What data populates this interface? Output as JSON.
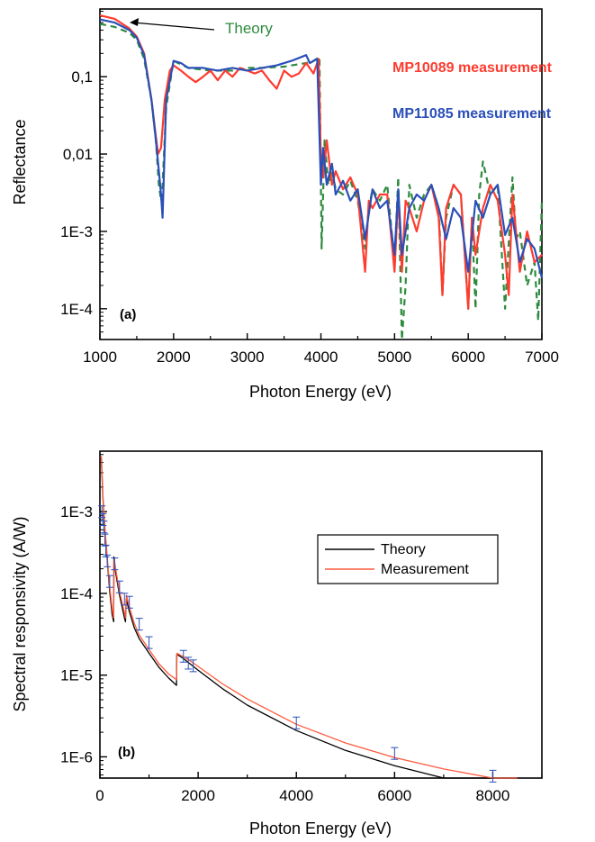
{
  "chart_data": [
    {
      "type": "line",
      "panel_label": "(a)",
      "xlabel": "Photon Energy (eV)",
      "ylabel": "Reflectance",
      "xlim": [
        1000,
        7000
      ],
      "ylim": [
        4e-05,
        0.75
      ],
      "yscale": "log",
      "x_ticks": [
        1000,
        2000,
        3000,
        4000,
        5000,
        6000,
        7000
      ],
      "x_tick_labels": [
        "1000",
        "2000",
        "3000",
        "4000",
        "5000",
        "6000",
        "7000"
      ],
      "y_ticks": [
        0.1,
        0.01,
        0.001,
        0.0001
      ],
      "y_tick_labels": [
        "0,1",
        "0,01",
        "1E-3",
        "1E-4"
      ],
      "grid": false,
      "annotation": "Theory",
      "series": [
        {
          "name": "Theory",
          "color": "#2e8b3e",
          "style": "dashed",
          "x": [
            1000,
            1200,
            1400,
            1500,
            1600,
            1700,
            1760,
            1800,
            1830,
            1850,
            1900,
            2000,
            2200,
            2500,
            2800,
            3000,
            3200,
            3500,
            3800,
            3900,
            3980,
            4010,
            4050,
            4100,
            4150,
            4200,
            4300,
            4400,
            4500,
            4600,
            4650,
            4700,
            4800,
            4900,
            5000,
            5050,
            5100,
            5150,
            5200,
            5300,
            5400,
            5500,
            5600,
            5650,
            5700,
            5800,
            5900,
            6000,
            6050,
            6100,
            6150,
            6200,
            6300,
            6400,
            6500,
            6600,
            6650,
            6700,
            6800,
            6900,
            6950,
            7000
          ],
          "y": [
            0.48,
            0.44,
            0.37,
            0.3,
            0.17,
            0.05,
            0.015,
            0.004,
            0.0025,
            0.004,
            0.04,
            0.16,
            0.13,
            0.12,
            0.12,
            0.13,
            0.13,
            0.135,
            0.15,
            0.16,
            0.18,
            0.0006,
            0.015,
            0.004,
            0.006,
            0.0035,
            0.003,
            0.0045,
            0.0025,
            0.0006,
            0.002,
            0.0035,
            0.0025,
            0.004,
            0.0004,
            0.005,
            4e-05,
            0.0002,
            0.004,
            0.0015,
            0.003,
            0.004,
            0.002,
            0.00015,
            0.0015,
            0.004,
            0.003,
            0.0001,
            0.0015,
            0.0001,
            0.003,
            0.008,
            0.003,
            0.004,
            0.0001,
            0.005,
            0.0008,
            0.001,
            0.0002,
            0.0004,
            7e-05,
            0.0025
          ]
        },
        {
          "name": "MP10089 measurement",
          "color": "#ff3b2f",
          "style": "solid",
          "x": [
            1000,
            1200,
            1400,
            1500,
            1600,
            1700,
            1750,
            1790,
            1830,
            1880,
            1950,
            2000,
            2100,
            2200,
            2300,
            2400,
            2500,
            2600,
            2700,
            2800,
            2900,
            3000,
            3100,
            3200,
            3300,
            3400,
            3500,
            3600,
            3700,
            3800,
            3900,
            3970,
            4000,
            4030,
            4080,
            4150,
            4200,
            4300,
            4400,
            4500,
            4600,
            4650,
            4700,
            4800,
            4900,
            5000,
            5050,
            5100,
            5150,
            5200,
            5300,
            5400,
            5500,
            5600,
            5650,
            5700,
            5800,
            5900,
            6000,
            6050,
            6100,
            6200,
            6300,
            6400,
            6500,
            6550,
            6600,
            6700,
            6800,
            6900,
            7000
          ],
          "y": [
            0.62,
            0.56,
            0.42,
            0.33,
            0.2,
            0.05,
            0.02,
            0.01,
            0.012,
            0.05,
            0.12,
            0.14,
            0.12,
            0.1,
            0.085,
            0.1,
            0.12,
            0.09,
            0.12,
            0.1,
            0.13,
            0.12,
            0.11,
            0.12,
            0.09,
            0.07,
            0.12,
            0.1,
            0.11,
            0.15,
            0.11,
            0.17,
            0.008,
            0.005,
            0.015,
            0.004,
            0.006,
            0.0035,
            0.005,
            0.003,
            0.0003,
            0.0025,
            0.002,
            0.003,
            0.003,
            0.0003,
            0.003,
            0.0003,
            0.0025,
            0.002,
            0.001,
            0.0025,
            0.004,
            0.0015,
            0.00015,
            0.002,
            0.004,
            0.003,
            0.0001,
            0.0015,
            0.0005,
            0.002,
            0.004,
            0.0025,
            0.0005,
            0.00015,
            0.003,
            0.0003,
            0.001,
            0.0004,
            0.0005
          ]
        },
        {
          "name": "MP11085 measurement",
          "color": "#2a4fb8",
          "style": "solid",
          "x": [
            1000,
            1200,
            1400,
            1500,
            1600,
            1700,
            1760,
            1800,
            1830,
            1850,
            1900,
            2000,
            2100,
            2200,
            2400,
            2600,
            2800,
            3000,
            3200,
            3400,
            3600,
            3800,
            3850,
            3950,
            4000,
            4030,
            4080,
            4150,
            4200,
            4300,
            4400,
            4500,
            4600,
            4700,
            4800,
            4900,
            5000,
            5050,
            5100,
            5200,
            5300,
            5400,
            5500,
            5600,
            5700,
            5800,
            5900,
            6000,
            6100,
            6200,
            6300,
            6400,
            6500,
            6600,
            6700,
            6800,
            6900,
            7000
          ],
          "y": [
            0.55,
            0.5,
            0.4,
            0.32,
            0.19,
            0.05,
            0.015,
            0.006,
            0.003,
            0.0015,
            0.05,
            0.16,
            0.15,
            0.13,
            0.13,
            0.12,
            0.13,
            0.12,
            0.13,
            0.14,
            0.16,
            0.19,
            0.15,
            0.17,
            0.004,
            0.012,
            0.004,
            0.0075,
            0.003,
            0.0045,
            0.0025,
            0.0035,
            0.0008,
            0.0035,
            0.002,
            0.0025,
            0.0005,
            0.0035,
            0.0005,
            0.002,
            0.003,
            0.0025,
            0.004,
            0.002,
            0.0008,
            0.002,
            0.0015,
            0.0003,
            0.0025,
            0.0015,
            0.003,
            0.004,
            0.0009,
            0.0015,
            0.0004,
            0.0008,
            0.0006,
            0.00025
          ]
        }
      ]
    },
    {
      "type": "line",
      "panel_label": "(b)",
      "xlabel": "Photon Energy (eV)",
      "ylabel": "Spectral responsivity (A/W)",
      "xlim": [
        0,
        9000
      ],
      "ylim": [
        5.5e-07,
        0.0055
      ],
      "yscale": "log",
      "x_ticks": [
        0,
        2000,
        4000,
        6000,
        8000
      ],
      "x_tick_labels": [
        "0",
        "2000",
        "4000",
        "6000",
        "8000"
      ],
      "y_ticks": [
        0.001,
        0.0001,
        1e-05,
        1e-06
      ],
      "y_tick_labels": [
        "1E-3",
        "1E-4",
        "1E-5",
        "1E-6"
      ],
      "grid": false,
      "legend_position": "top-right",
      "series": [
        {
          "name": "Theory",
          "color": "#000000",
          "x": [
            30,
            60,
            100,
            150,
            200,
            250,
            280,
            285,
            320,
            400,
            500,
            520,
            535,
            600,
            700,
            800,
            1000,
            1200,
            1400,
            1560,
            1565,
            1700,
            2000,
            2500,
            3000,
            4000,
            5000,
            6000,
            7000,
            8000,
            8500
          ],
          "y": [
            0.0045,
            0.0015,
            0.0006,
            0.00025,
            0.000105,
            5.5e-05,
            4.5e-05,
            0.00028,
            0.00018,
            9.5e-05,
            5e-05,
            4.5e-05,
            8.5e-05,
            6e-05,
            3.8e-05,
            2.8e-05,
            1.85e-05,
            1.25e-05,
            9.2e-06,
            7.5e-06,
            1.8e-05,
            1.6e-05,
            1.15e-05,
            6.8e-06,
            4.3e-06,
            2.1e-06,
            1.2e-06,
            7.8e-07,
            5.5e-07,
            4.2e-07,
            3.7e-07
          ]
        },
        {
          "name": "Measurement",
          "color": "#ff5a3c",
          "x": [
            30,
            60,
            100,
            150,
            200,
            250,
            280,
            290,
            320,
            400,
            500,
            520,
            540,
            600,
            700,
            800,
            1000,
            1200,
            1400,
            1560,
            1570,
            1700,
            1800,
            2000,
            2500,
            3000,
            4000,
            5000,
            6000,
            7000,
            8000,
            8500
          ],
          "y": [
            0.0048,
            0.0016,
            0.00065,
            0.00027,
            0.00012,
            6.5e-05,
            5e-05,
            0.00026,
            0.0002,
            0.000105,
            5.8e-05,
            5e-05,
            9.5e-05,
            6.8e-05,
            4.3e-05,
            3.1e-05,
            2.05e-05,
            1.38e-05,
            1.03e-05,
            8.8e-06,
            1.85e-05,
            1.68e-05,
            1.55e-05,
            1.28e-05,
            7.8e-06,
            5.1e-06,
            2.5e-06,
            1.48e-06,
            9.8e-07,
            7.1e-07,
            5.5e-07,
            5.2e-07
          ]
        },
        {
          "name": "Measurement error bars",
          "color": "#2a4fb8",
          "x": [
            40,
            60,
            80,
            100,
            120,
            150,
            200,
            300,
            400,
            500,
            600,
            800,
            1000,
            1700,
            1800,
            1900,
            4000,
            6000,
            8000
          ],
          "y": [
            0.001,
            0.0008,
            0.00065,
            0.00045,
            0.00033,
            0.00025,
            0.00014,
            0.00023,
            0.00012,
            8.5e-05,
            7.8e-05,
            4.2e-05,
            2.5e-05,
            1.7e-05,
            1.4e-05,
            1.3e-05,
            2.6e-06,
            1.1e-06,
            5.8e-07
          ]
        }
      ]
    }
  ]
}
